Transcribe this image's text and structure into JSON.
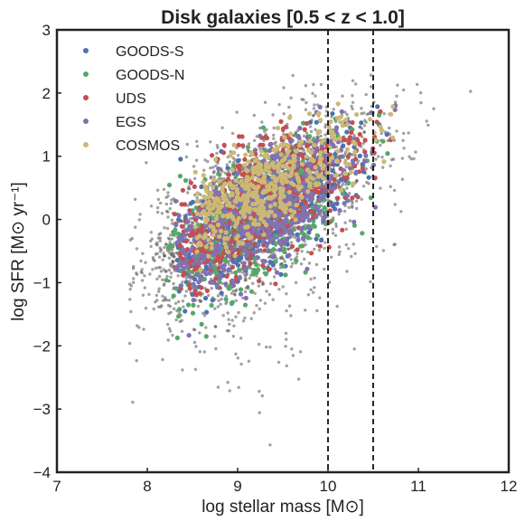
{
  "chart_data": {
    "type": "scatter",
    "title": "Disk galaxies [0.5 < z < 1.0]",
    "xlabel": "log stellar mass [M⊙]",
    "ylabel": "log SFR [M⊙ yr⁻¹]",
    "xlim": [
      7,
      12
    ],
    "ylim": [
      -4,
      3
    ],
    "xticks": [
      7,
      8,
      9,
      10,
      11,
      12
    ],
    "yticks": [
      -4,
      -3,
      -2,
      -1,
      0,
      1,
      2,
      3
    ],
    "xtick_labels": [
      "7",
      "8",
      "9",
      "10",
      "11",
      "12"
    ],
    "ytick_labels": [
      "−4",
      "−3",
      "−2",
      "−1",
      "0",
      "1",
      "2",
      "3"
    ],
    "grid": false,
    "legend_position": "top-left",
    "vlines": [
      10.0,
      10.5
    ],
    "background_points": {
      "color": "#555555",
      "count": 2600,
      "x_range": [
        7.8,
        11.7
      ],
      "y_range": [
        -3.7,
        2.35
      ],
      "trend": {
        "slope": 0.72,
        "intercept_at_9": 0.05,
        "scatter": 0.55
      }
    },
    "series": [
      {
        "name": "GOODS-S",
        "color": "#4c72b0",
        "count": 420,
        "x_range": [
          8.3,
          11.3
        ],
        "trend": {
          "slope": 0.75,
          "intercept_at_9": -0.1,
          "scatter": 0.45
        }
      },
      {
        "name": "GOODS-N",
        "color": "#55a868",
        "count": 360,
        "x_range": [
          8.2,
          11.3
        ],
        "trend": {
          "slope": 0.75,
          "intercept_at_9": -0.15,
          "scatter": 0.5
        }
      },
      {
        "name": "UDS",
        "color": "#c44e52",
        "count": 650,
        "x_range": [
          8.3,
          11.1
        ],
        "trend": {
          "slope": 0.75,
          "intercept_at_9": 0.05,
          "scatter": 0.45
        }
      },
      {
        "name": "EGS",
        "color": "#8172b2",
        "count": 550,
        "x_range": [
          8.3,
          11.2
        ],
        "trend": {
          "slope": 0.75,
          "intercept_at_9": -0.05,
          "scatter": 0.45
        }
      },
      {
        "name": "COSMOS",
        "color": "#ccb974",
        "count": 520,
        "x_range": [
          8.5,
          10.8
        ],
        "trend": {
          "slope": 0.72,
          "intercept_at_9": 0.3,
          "scatter": 0.35
        }
      }
    ]
  }
}
